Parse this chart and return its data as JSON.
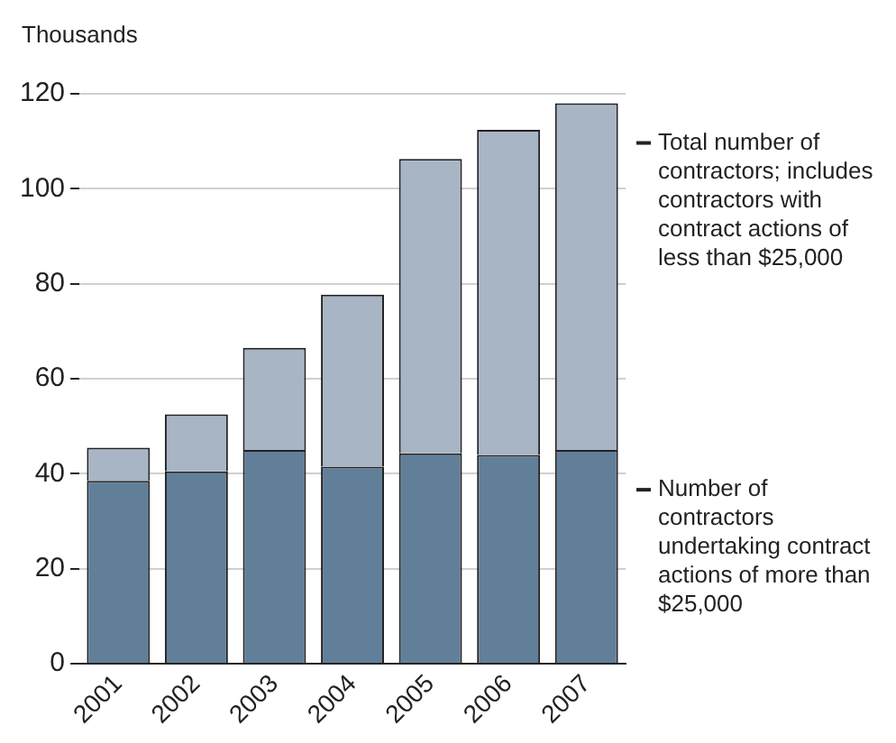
{
  "chart_data": {
    "type": "bar",
    "ylabel": "Thousands",
    "categories": [
      "2001",
      "2002",
      "2003",
      "2004",
      "2005",
      "2006",
      "2007"
    ],
    "stacked": true,
    "series": [
      {
        "name": "Number of contractors undertaking contract actions of more than $25,000",
        "color": "#627f99",
        "values": [
          38.5,
          40.5,
          45,
          41.5,
          44.3,
          44,
          45
        ]
      },
      {
        "name": "Total number of contractors; includes contractors with contract actions of less than $25,000",
        "color": "#a7b5c5",
        "values": [
          7,
          12,
          21.5,
          36.2,
          62,
          68.4,
          73
        ]
      }
    ],
    "ylim": [
      0,
      120
    ],
    "yticks": [
      0,
      20,
      40,
      60,
      80,
      100,
      120
    ],
    "grid": "y",
    "legend": false
  }
}
